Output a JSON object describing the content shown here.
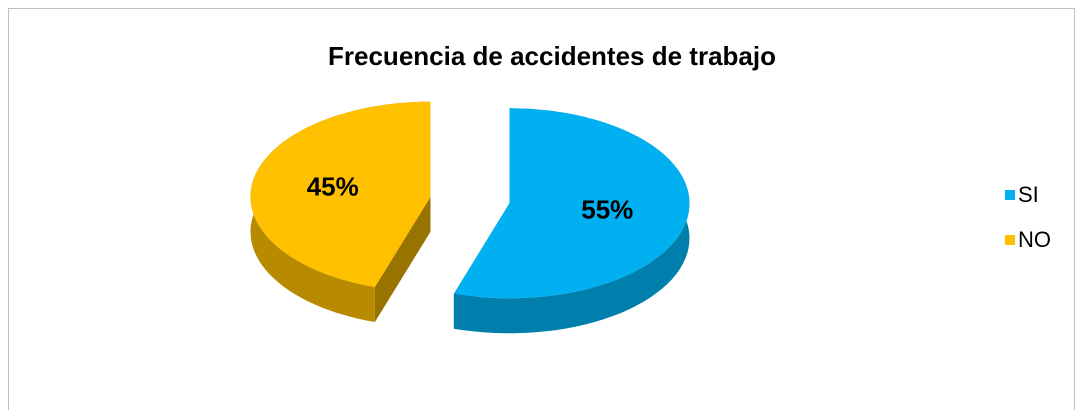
{
  "chart_data": {
    "type": "pie",
    "title": "Frecuencia de accidentes de trabajo",
    "categories": [
      "SI",
      "NO"
    ],
    "values": [
      55,
      45
    ],
    "value_labels": [
      "55%",
      "45%"
    ],
    "colors": [
      "#00b0f0",
      "#ffc000"
    ],
    "legend": "right",
    "three_d": true,
    "exploded": true
  }
}
